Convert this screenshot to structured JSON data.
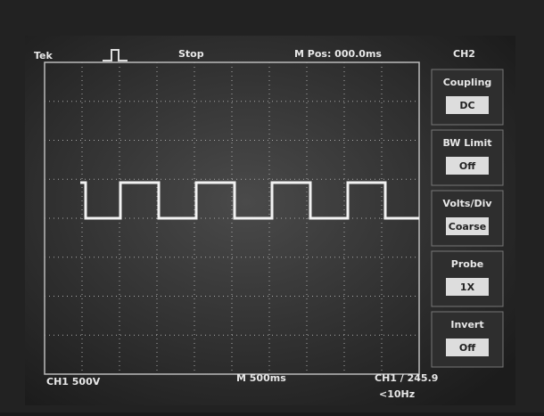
{
  "header": {
    "brand": "Tek",
    "status": "Stop",
    "position": "M Pos: 000.0ms"
  },
  "menu": {
    "title": "CH2",
    "items": [
      {
        "label": "Coupling",
        "value": "DC"
      },
      {
        "label": "BW Limit",
        "value": "Off"
      },
      {
        "label": "Volts/Div",
        "value": "Coarse"
      },
      {
        "label": "Probe",
        "value": "1X"
      },
      {
        "label": "Invert",
        "value": "Off"
      }
    ]
  },
  "footer": {
    "channel": "CH1 500V",
    "timebase": "M 500ms",
    "trigger": "CH1 / 245.9",
    "frequency": "<10Hz"
  }
}
